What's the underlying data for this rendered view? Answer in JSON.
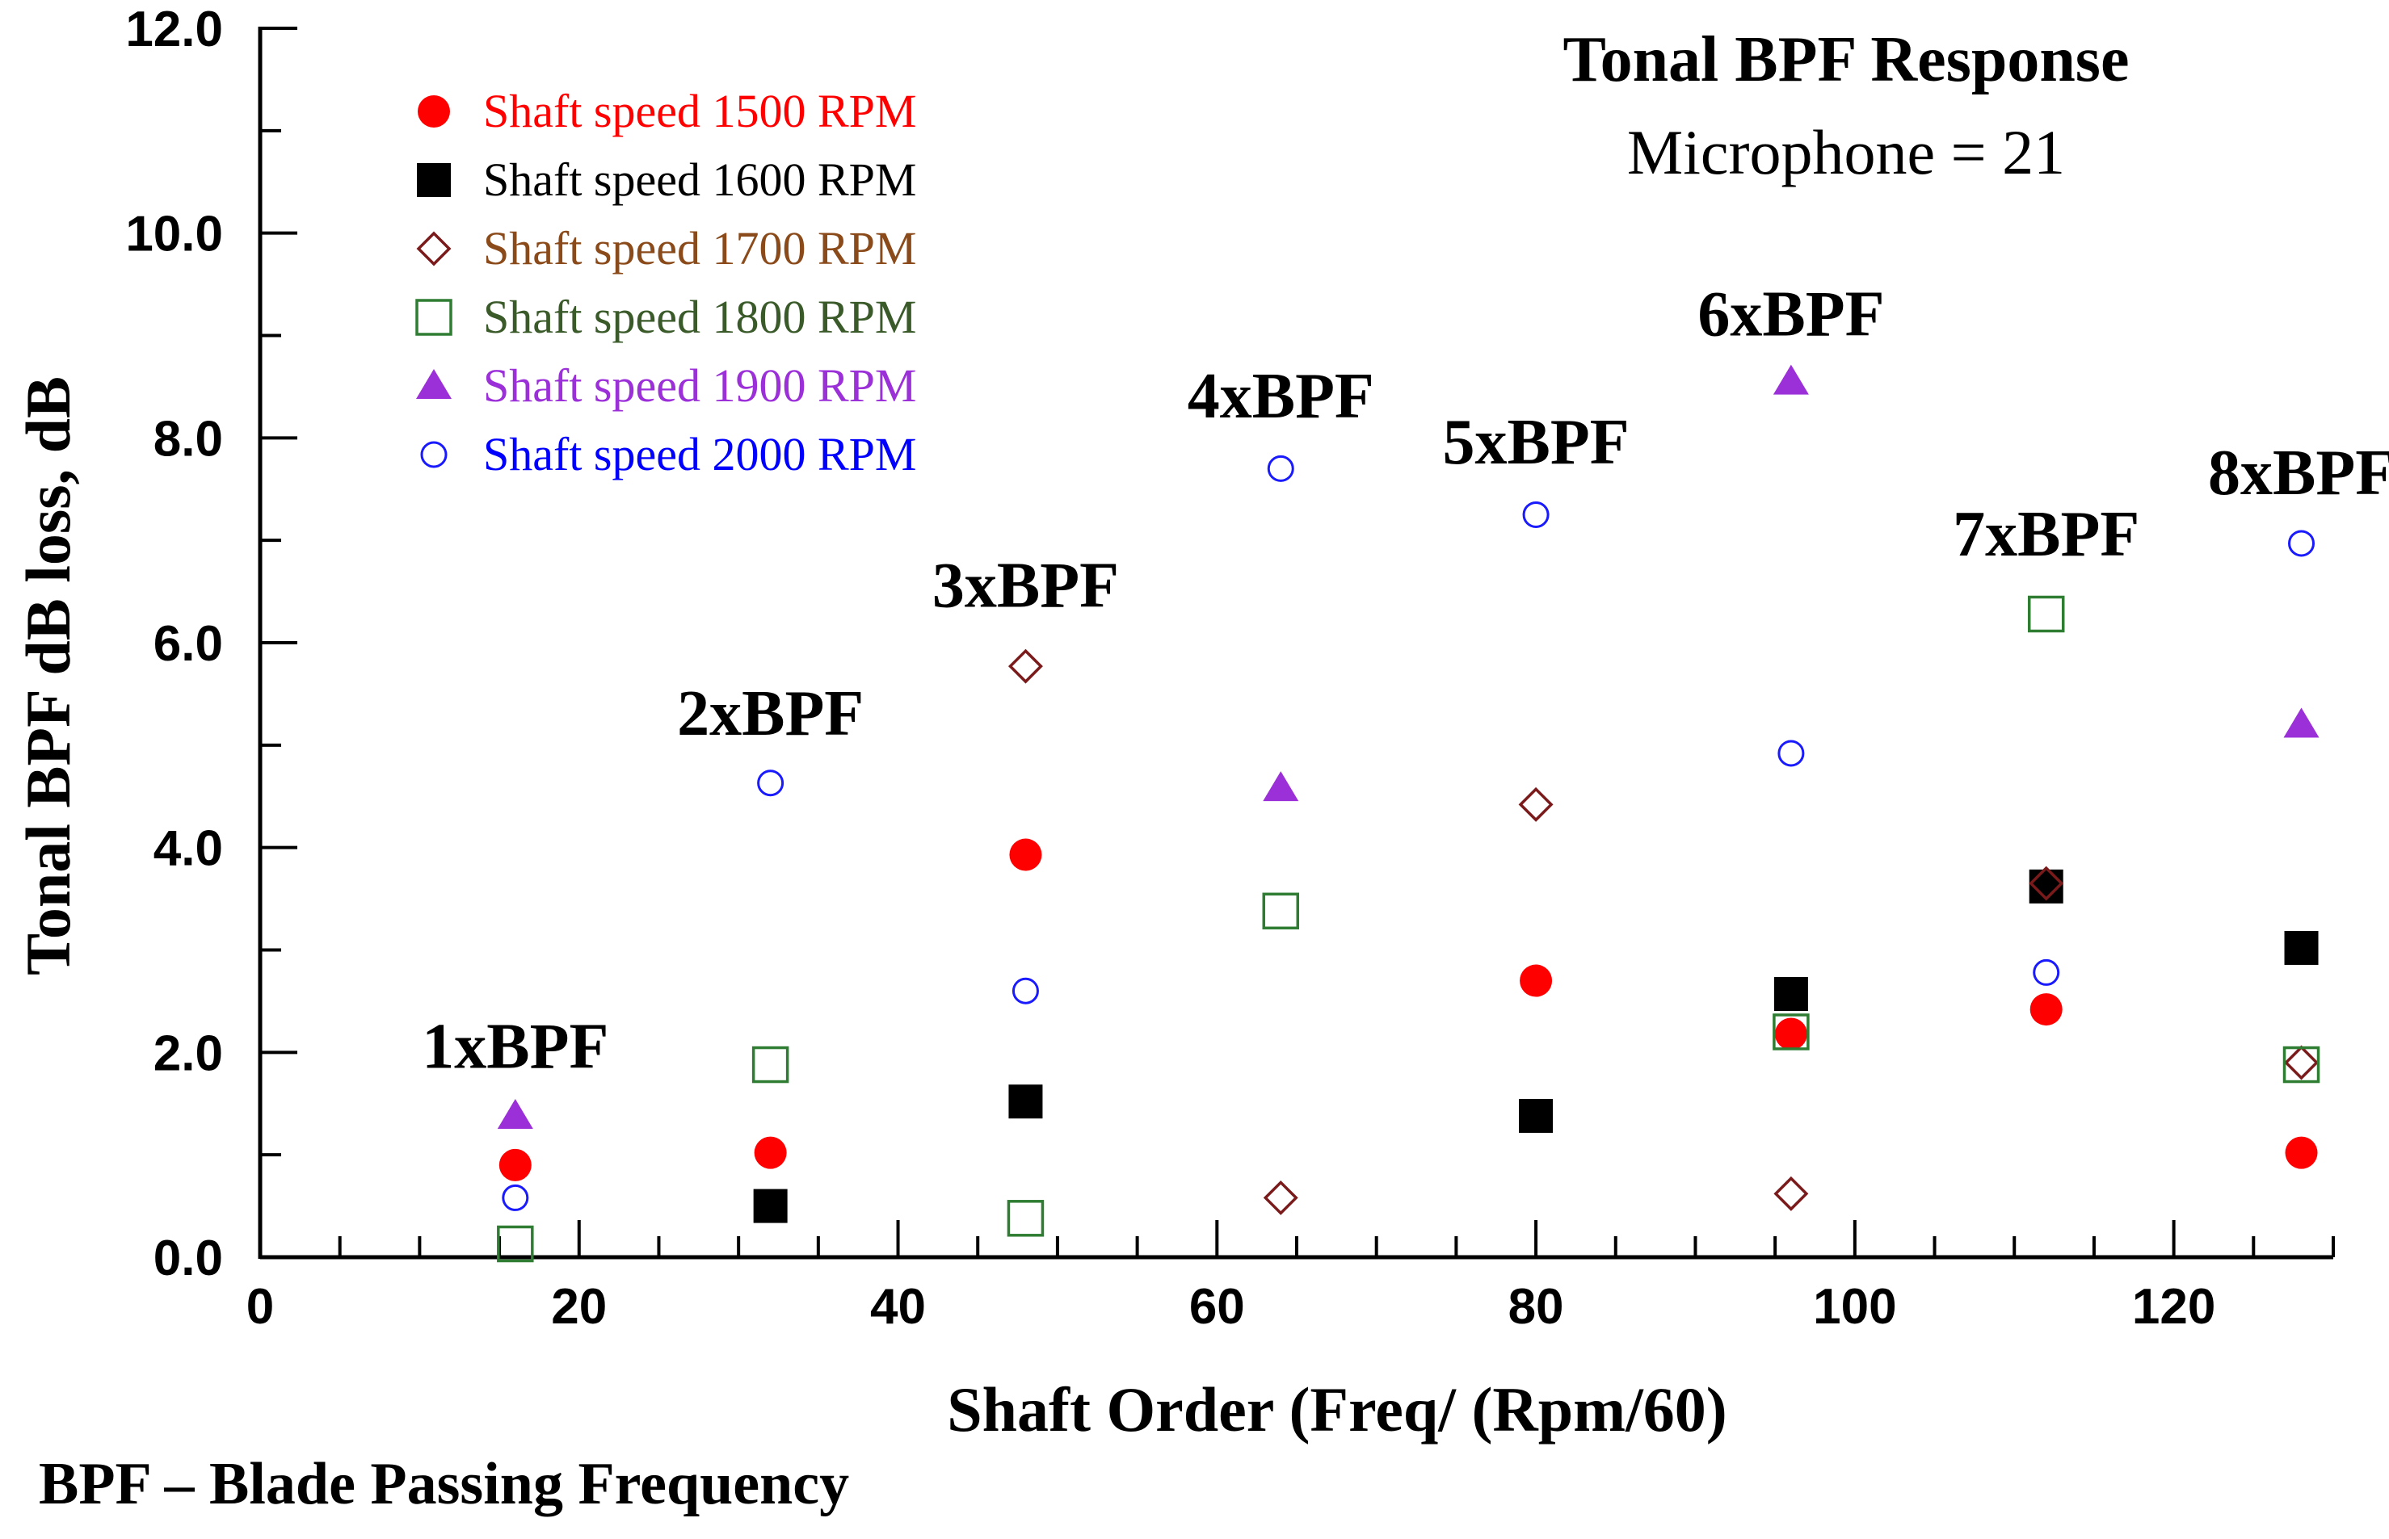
{
  "chart_data": {
    "type": "scatter",
    "title": "Tonal BPF Response",
    "subtitle": "Microphone = 21",
    "xlabel": "Shaft Order (Freq/ (Rpm/60)",
    "ylabel": "Tonal BPF dB loss, dB",
    "footnote": "BPF – Blade Passing Frequency",
    "xlim": [
      0,
      130
    ],
    "ylim": [
      0,
      12
    ],
    "x_ticks": [
      0,
      20,
      40,
      60,
      80,
      100,
      120
    ],
    "x_tick_labels": [
      "0",
      "20",
      "40",
      "60",
      "80",
      "100",
      "120"
    ],
    "x_minor_step": 5,
    "y_ticks": [
      0,
      2,
      4,
      6,
      8,
      10,
      12
    ],
    "y_tick_labels": [
      "0.0",
      "2.0",
      "4.0",
      "6.0",
      "8.0",
      "10.0",
      "12.0"
    ],
    "y_minor_step": 1,
    "grid": false,
    "legend_position": "top-left",
    "x": [
      16,
      32,
      48,
      64,
      80,
      96,
      112,
      128
    ],
    "series": [
      {
        "name": "Shaft speed 1500 RPM",
        "marker": "filled-circle",
        "color": "#ff0000",
        "text_color": "#ff0000",
        "values": [
          0.9,
          1.02,
          3.93,
          null,
          2.7,
          2.18,
          2.42,
          1.02
        ]
      },
      {
        "name": "Shaft speed 1600 RPM",
        "marker": "filled-square",
        "color": "#000000",
        "text_color": "#000000",
        "values": [
          null,
          0.5,
          1.52,
          null,
          1.38,
          2.57,
          3.62,
          3.02
        ]
      },
      {
        "name": "Shaft speed 1700 RPM",
        "marker": "open-diamond",
        "color": "#7b1a1a",
        "text_color": "#8b4a1a",
        "values": [
          null,
          null,
          5.77,
          0.58,
          4.42,
          0.62,
          3.65,
          1.9
        ]
      },
      {
        "name": "Shaft speed 1800 RPM",
        "marker": "open-square",
        "color": "#2e7d32",
        "text_color": "#3a5a2a",
        "values": [
          0.13,
          1.88,
          0.38,
          3.38,
          null,
          2.2,
          6.28,
          1.88
        ]
      },
      {
        "name": "Shaft speed 1900 RPM",
        "marker": "filled-triangle",
        "color": "#9b30d9",
        "text_color": "#9b30d9",
        "values": [
          1.38,
          null,
          null,
          4.58,
          null,
          8.55,
          null,
          5.2
        ]
      },
      {
        "name": "Shaft speed 2000 RPM",
        "marker": "open-circle",
        "color": "#1a1aff",
        "text_color": "#0000ff",
        "values": [
          0.58,
          4.63,
          2.6,
          7.7,
          7.25,
          4.92,
          2.78,
          6.97
        ]
      }
    ],
    "annotations": [
      {
        "text": "1xBPF",
        "x": 16,
        "y": 1.85
      },
      {
        "text": "2xBPF",
        "x": 32,
        "y": 5.1
      },
      {
        "text": "3xBPF",
        "x": 48,
        "y": 6.35
      },
      {
        "text": "4xBPF",
        "x": 64,
        "y": 8.2
      },
      {
        "text": "5xBPF",
        "x": 80,
        "y": 7.75
      },
      {
        "text": "6xBPF",
        "x": 96,
        "y": 9.0
      },
      {
        "text": "7xBPF",
        "x": 112,
        "y": 6.85
      },
      {
        "text": "8xBPF",
        "x": 128,
        "y": 7.45
      }
    ]
  }
}
